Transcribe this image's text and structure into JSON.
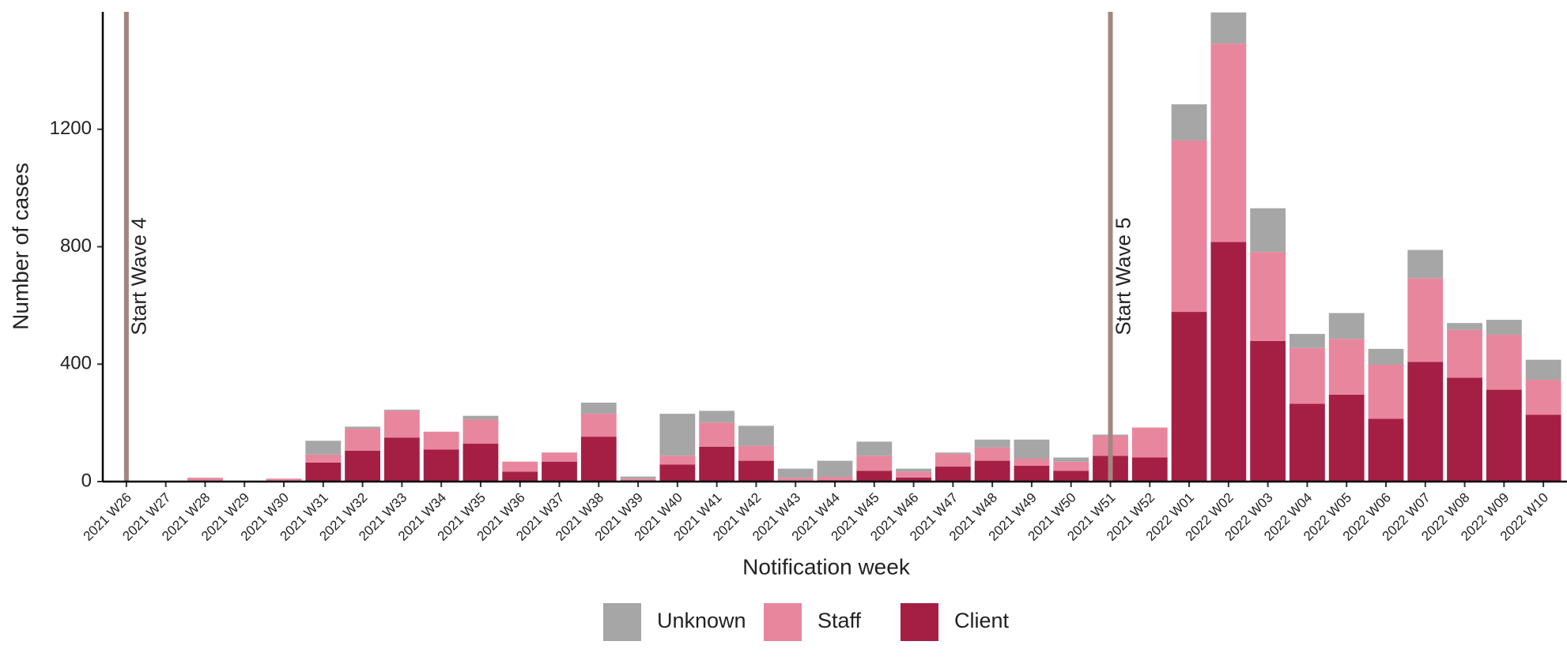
{
  "chart_data": {
    "type": "stacked-bar",
    "y_label": "Number of cases",
    "x_label": "Notification week",
    "categories": [
      "2021 W26",
      "2021 W27",
      "2021 W28",
      "2021 W29",
      "2021 W30",
      "2021 W31",
      "2021 W32",
      "2021 W33",
      "2021 W34",
      "2021 W35",
      "2021 W36",
      "2021 W37",
      "2021 W38",
      "2021 W39",
      "2021 W40",
      "2021 W41",
      "2021 W42",
      "2021 W43",
      "2021 W44",
      "2021 W45",
      "2021 W46",
      "2021 W47",
      "2021 W48",
      "2021 W49",
      "2021 W50",
      "2021 W51",
      "2021 W52",
      "2022 W01",
      "2022 W02",
      "2022 W03",
      "2022 W04",
      "2022 W05",
      "2022 W06",
      "2022 W07",
      "2022 W08",
      "2022 W09",
      "2022 W10"
    ],
    "series": [
      {
        "name": "Client",
        "color": "#a51f45",
        "values": [
          0,
          0,
          3,
          0,
          2,
          65,
          105,
          150,
          109,
          129,
          34,
          68,
          153,
          4,
          58,
          119,
          71,
          3,
          4,
          37,
          14,
          51,
          71,
          54,
          37,
          88,
          82,
          578,
          816,
          479,
          265,
          296,
          214,
          408,
          354,
          313,
          228
        ]
      },
      {
        "name": "Staff",
        "color": "#e8869e",
        "values": [
          0,
          0,
          10,
          0,
          8,
          27,
          75,
          91,
          61,
          82,
          34,
          31,
          78,
          6,
          30,
          82,
          51,
          10,
          12,
          51,
          20,
          44,
          45,
          24,
          31,
          68,
          102,
          584,
          676,
          303,
          190,
          190,
          184,
          285,
          163,
          187,
          119
        ]
      },
      {
        "name": "Unknown",
        "color": "#a6a6a6",
        "values": [
          0,
          0,
          0,
          0,
          0,
          47,
          7,
          4,
          0,
          13,
          0,
          0,
          38,
          7,
          143,
          40,
          68,
          31,
          55,
          48,
          10,
          4,
          27,
          65,
          14,
          4,
          0,
          123,
          106,
          149,
          48,
          88,
          54,
          96,
          23,
          51,
          68
        ]
      }
    ],
    "ylim": [
      0,
      1600
    ],
    "yticks": [
      0,
      400,
      800,
      1200
    ],
    "annotations": [
      {
        "label": "Start Wave 4",
        "category": "2021 W26",
        "color": "#a3867f"
      },
      {
        "label": "Start Wave 5",
        "category": "2021 W51",
        "color": "#a3867f"
      }
    ],
    "legend": "bottom"
  }
}
